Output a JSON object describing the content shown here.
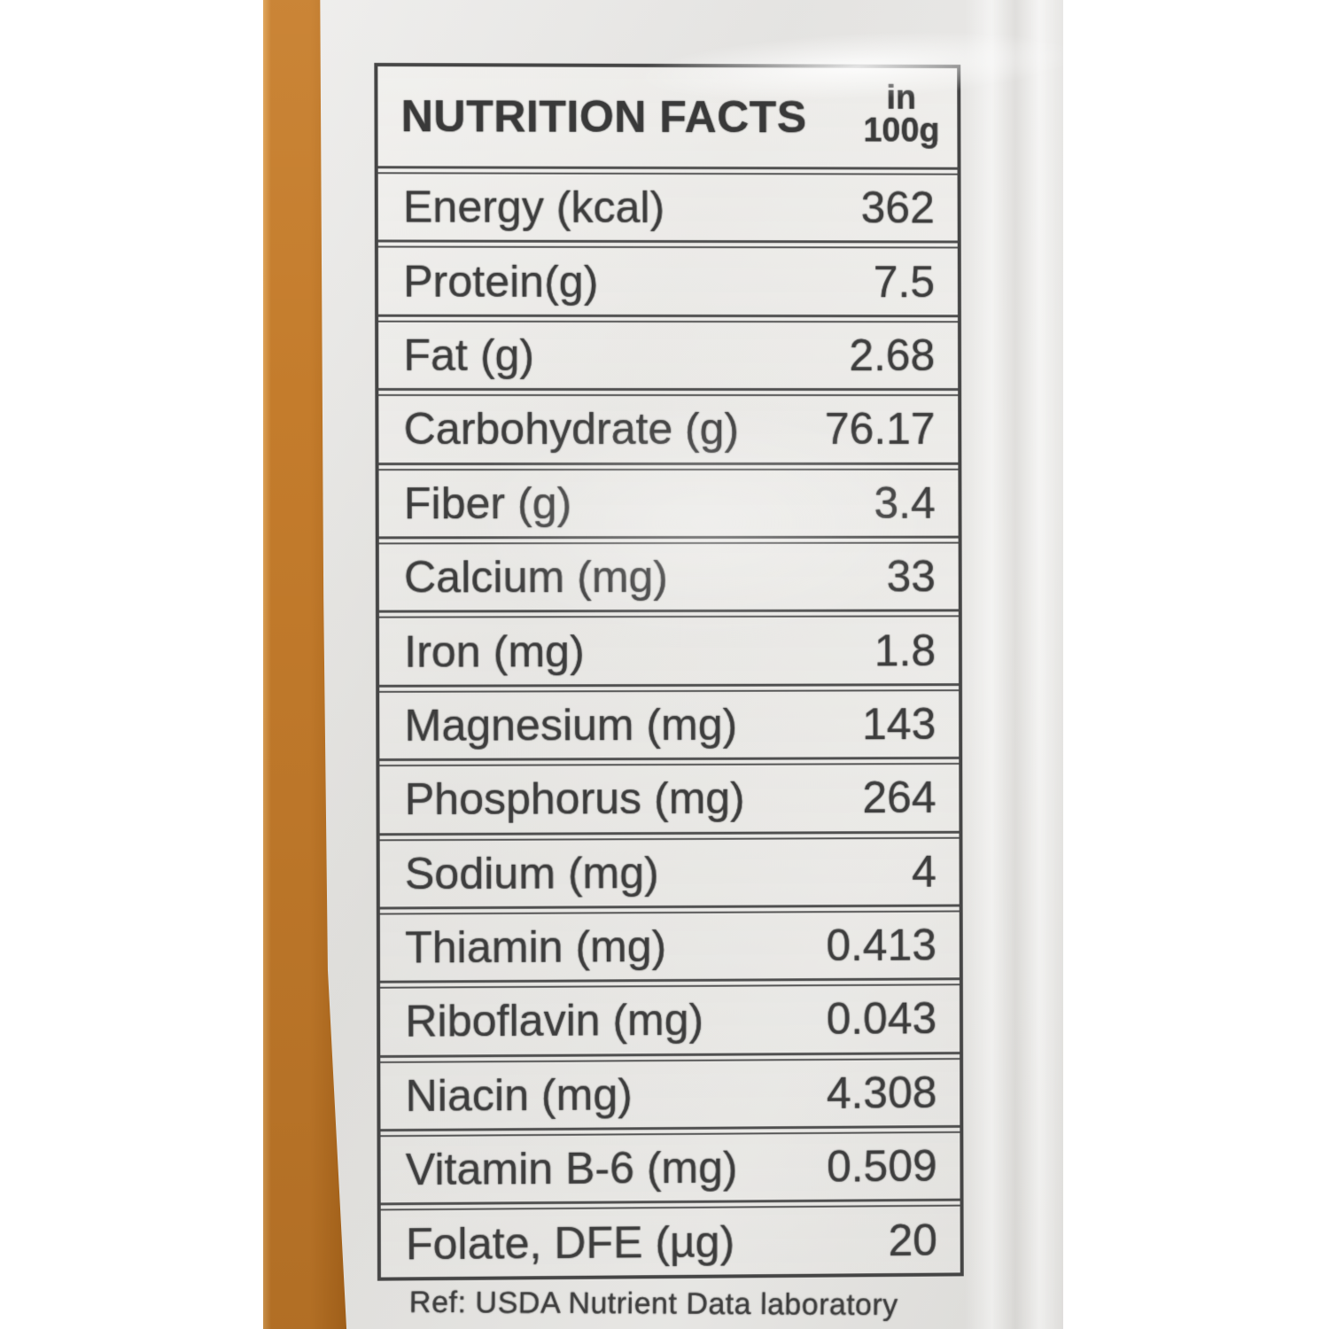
{
  "nutrition_label": {
    "title": "NUTRITION FACTS",
    "per_unit": {
      "line1": "in",
      "line2": "100g"
    },
    "rows": [
      {
        "label": "Energy (kcal)",
        "value": "362"
      },
      {
        "label": "Protein(g)",
        "value": "7.5"
      },
      {
        "label": "Fat (g)",
        "value": "2.68"
      },
      {
        "label": "Carbohydrate (g)",
        "value": "76.17"
      },
      {
        "label": "Fiber (g)",
        "value": "3.4"
      },
      {
        "label": "Calcium (mg)",
        "value": "33"
      },
      {
        "label": "Iron (mg)",
        "value": "1.8"
      },
      {
        "label": "Magnesium (mg)",
        "value": "143"
      },
      {
        "label": "Phosphorus (mg)",
        "value": "264"
      },
      {
        "label": "Sodium (mg)",
        "value": "4"
      },
      {
        "label": "Thiamin (mg)",
        "value": "0.413"
      },
      {
        "label": "Riboflavin (mg)",
        "value": "0.043"
      },
      {
        "label": "Niacin (mg)",
        "value": "4.308"
      },
      {
        "label": "Vitamin B-6 (mg)",
        "value": "0.509"
      },
      {
        "label": "Folate, DFE (µg)",
        "value": "20"
      }
    ],
    "footnote": "Ref: USDA Nutrient Data laboratory"
  },
  "colors": {
    "stripe_top": "#c47c2c",
    "stripe_bottom": "#ad681d",
    "stripe_edge": "#dda257",
    "text": "#3d3d3d",
    "rule_line": "#4f4f4f"
  }
}
